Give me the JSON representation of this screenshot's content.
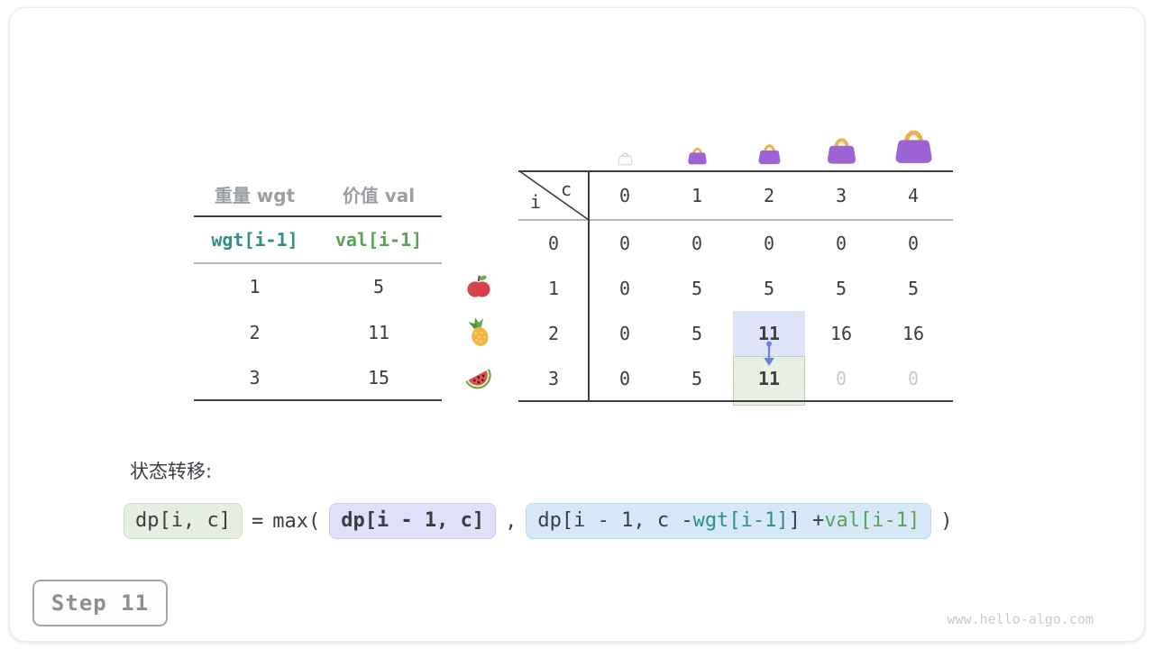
{
  "colors": {
    "text_dark": "#3a3d42",
    "muted_gray": "#9b9ea3",
    "teal": "#2e8f87",
    "green": "#5aa257",
    "dimmed_value": "#c9cbcd",
    "cell_highlight_purple": "#dfe3f7",
    "cell_highlight_green": "#e7f0e3",
    "cell_highlight_green_border": "#b6d6b2",
    "chip_green_bg": "#e4efe2",
    "chip_purple_bg": "#dee1f7",
    "chip_blue_bg": "#d7e9f8",
    "arrow_blue": "#6b82dd",
    "bag_purple": "#9d63d3",
    "bag_handle": "#f0b04a",
    "line_dark": "#3d3f42",
    "line_gray": "#b4b7b9"
  },
  "items_table": {
    "col_headers": [
      "重量 wgt",
      "价值 val"
    ],
    "index_row": [
      {
        "text": "wgt[i-1]",
        "color": "teal"
      },
      {
        "text": "val[i-1]",
        "color": "green"
      }
    ],
    "rows": [
      {
        "wgt": "1",
        "val": "5",
        "icon": "apple-icon"
      },
      {
        "wgt": "2",
        "val": "11",
        "icon": "pineapple-icon"
      },
      {
        "wgt": "3",
        "val": "15",
        "icon": "watermelon-icon"
      }
    ]
  },
  "dp_table": {
    "corner_top_label": "c",
    "corner_side_label": "i",
    "col_headers": [
      "0",
      "1",
      "2",
      "3",
      "4"
    ],
    "row_headers": [
      "0",
      "1",
      "2",
      "3"
    ],
    "cells": [
      [
        "0",
        "0",
        "0",
        "0",
        "0"
      ],
      [
        "0",
        "5",
        "5",
        "5",
        "5"
      ],
      [
        "0",
        "5",
        "11",
        "16",
        "16"
      ],
      [
        "0",
        "5",
        "11",
        "0",
        "0"
      ]
    ],
    "bold_cells": [
      [
        2,
        2
      ],
      [
        3,
        2
      ]
    ],
    "dimmed_cells": [
      [
        3,
        3
      ],
      [
        3,
        4
      ]
    ],
    "highlight_source_cell": [
      2,
      2
    ],
    "highlight_target_cell": [
      3,
      2
    ],
    "bags": [
      {
        "capacity": 0,
        "ghost": true
      },
      {
        "capacity": 1,
        "ghost": false
      },
      {
        "capacity": 2,
        "ghost": false
      },
      {
        "capacity": 3,
        "ghost": false
      },
      {
        "capacity": 4,
        "ghost": false
      }
    ]
  },
  "formula": {
    "label": "状态转移:",
    "segments": [
      {
        "kind": "chip",
        "style": "green",
        "parts": [
          {
            "text": "dp[i, c]",
            "color": "dark"
          }
        ]
      },
      {
        "kind": "text",
        "text": "="
      },
      {
        "kind": "text",
        "text": "max("
      },
      {
        "kind": "chip",
        "style": "purple",
        "parts": [
          {
            "text": "dp[i - 1, c]",
            "color": "dark"
          }
        ]
      },
      {
        "kind": "text",
        "text": ","
      },
      {
        "kind": "chip",
        "style": "blue",
        "parts": [
          {
            "text": "dp[i - 1, c - ",
            "color": "dark"
          },
          {
            "text": "wgt[i-1]",
            "color": "teal"
          },
          {
            "text": "] + ",
            "color": "dark"
          },
          {
            "text": "val[i-1]",
            "color": "green"
          }
        ]
      },
      {
        "kind": "text",
        "text": ")"
      }
    ]
  },
  "step_badge": {
    "label": "Step 11"
  },
  "watermark": {
    "text": "www.hello-algo.com"
  }
}
